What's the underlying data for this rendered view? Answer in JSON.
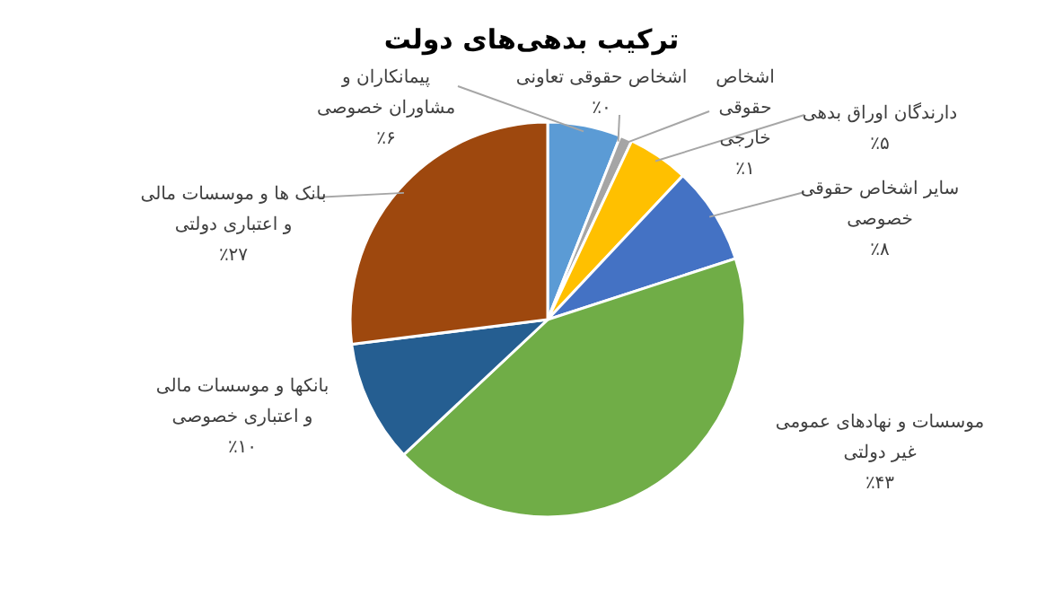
{
  "chart_data": {
    "type": "pie",
    "title": "ترکیب بدهی‌های دولت",
    "categories": [
      "پیمانکاران و مشاوران خصوصی",
      "اشخاص حقوقی تعاونی",
      "اشخاص حقوقی خارجی",
      "دارندگان اوراق بدهی",
      "سایر اشخاص حقوقی خصوصی",
      "موسسات و نهادهای عمومی غیر دولتی",
      "بانکها و موسسات مالی و اعتباری خصوصی",
      "بانک ها و موسسات مالی و اعتباری دولتی"
    ],
    "values": [
      6,
      0,
      1,
      5,
      8,
      43,
      10,
      27
    ],
    "value_labels": [
      "٪۶",
      "٪۰",
      "٪۱",
      "٪۵",
      "٪۸",
      "٪۴۳",
      "٪۱۰",
      "٪۲۷"
    ],
    "colors": [
      "#5b9bd5",
      "#ed7d31",
      "#a5a5a5",
      "#ffc000",
      "#4472c4",
      "#70ad47",
      "#255e91",
      "#9e480e"
    ]
  }
}
